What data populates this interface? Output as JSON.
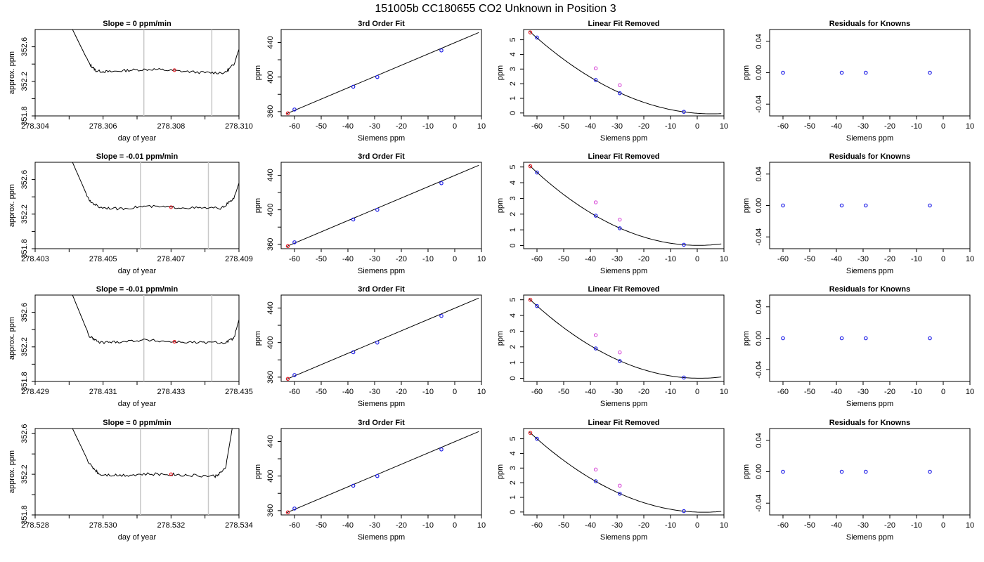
{
  "main_title": "151005b     CC180655   CO2 Unknown in Position  3",
  "chart_data": [
    {
      "type": "line",
      "title": "Slope =  0  ppm/min",
      "xlabel": "day of year",
      "ylabel": "approx. ppm",
      "xlim": [
        278.304,
        278.31
      ],
      "ylim": [
        351.8,
        352.8
      ],
      "xticks": [
        "278.304",
        "278.306",
        "278.308",
        "278.310"
      ],
      "yticks": [
        "351.8",
        "352.2",
        "352.6"
      ],
      "vlines": [
        278.3072,
        278.3092
      ],
      "x": [
        278.3051,
        278.3056,
        278.3058,
        278.3062,
        278.3068,
        278.3075,
        278.3082,
        278.309,
        278.3096,
        278.30985,
        278.3102
      ],
      "y": [
        352.8,
        352.4,
        352.32,
        352.31,
        352.33,
        352.34,
        352.32,
        352.3,
        352.3,
        352.4,
        352.8
      ],
      "marker": {
        "x": 278.3081,
        "y": 352.33
      }
    },
    {
      "type": "line",
      "title": "3rd Order Fit",
      "xlabel": "Siemens ppm",
      "ylabel": "ppm",
      "xlim": [
        -65,
        10
      ],
      "ylim": [
        355,
        455
      ],
      "xticks": [
        "-60",
        "-50",
        "-40",
        "-30",
        "-20",
        "-10",
        "0",
        "10"
      ],
      "yticks": [
        "360",
        "400",
        "440"
      ],
      "blue_points": [
        [
          -60,
          362.4
        ],
        [
          -38,
          388.8
        ],
        [
          -29,
          400
        ],
        [
          -5,
          430.8
        ]
      ],
      "red_points": [
        [
          -62.5,
          358
        ]
      ],
      "line": [
        [
          -63,
          357.5
        ],
        [
          9,
          451.5
        ]
      ]
    },
    {
      "type": "line",
      "title": "Linear Fit Removed",
      "xlabel": "Siemens ppm",
      "ylabel": "ppm",
      "xlim": [
        -65,
        10
      ],
      "ylim": [
        -0.2,
        5.7
      ],
      "xticks": [
        "-60",
        "-50",
        "-40",
        "-30",
        "-20",
        "-10",
        "0",
        "10"
      ],
      "yticks": [
        "0",
        "1",
        "2",
        "3",
        "4",
        "5"
      ],
      "blue_points": [
        [
          -60,
          5.15
        ],
        [
          -38,
          2.25
        ],
        [
          -29,
          1.35
        ],
        [
          -5,
          0.08
        ]
      ],
      "magenta_points": [
        [
          -38,
          3.05
        ],
        [
          -29,
          1.9
        ]
      ],
      "red_points": [
        [
          -62.5,
          5.5
        ]
      ]
    },
    {
      "type": "scatter",
      "title": "Residuals for Knowns",
      "xlabel": "Siemens ppm",
      "ylabel": "ppm",
      "xlim": [
        -65,
        10
      ],
      "ylim": [
        -0.055,
        0.055
      ],
      "xticks": [
        "-60",
        "-50",
        "-40",
        "-30",
        "-20",
        "-10",
        "0",
        "10"
      ],
      "yticks": [
        "-0.04",
        "0.00",
        "0.04"
      ],
      "blue_points": [
        [
          -60,
          0
        ],
        [
          -38,
          0
        ],
        [
          -29,
          0
        ],
        [
          -5,
          0
        ]
      ]
    },
    {
      "type": "line",
      "title": "Slope =  -0.01  ppm/min",
      "xlabel": "day of year",
      "ylabel": "approx. ppm",
      "xlim": [
        278.403,
        278.409
      ],
      "ylim": [
        351.8,
        352.8
      ],
      "xticks": [
        "278.403",
        "278.405",
        "278.407",
        "278.409"
      ],
      "yticks": [
        "351.8",
        "352.2",
        "352.6"
      ],
      "vlines": [
        278.4061,
        278.4081
      ],
      "x": [
        278.4041,
        278.4046,
        278.4049,
        278.4055,
        278.4062,
        278.407,
        278.4078,
        278.4085,
        278.40885,
        278.4092
      ],
      "y": [
        352.8,
        352.35,
        352.28,
        352.26,
        352.29,
        352.28,
        352.27,
        352.27,
        352.38,
        352.8
      ],
      "marker": {
        "x": 278.407,
        "y": 352.28
      }
    },
    {
      "type": "line",
      "title": "3rd Order Fit",
      "xlabel": "Siemens ppm",
      "ylabel": "ppm",
      "xlim": [
        -65,
        10
      ],
      "ylim": [
        355,
        455
      ],
      "xticks": [
        "-60",
        "-50",
        "-40",
        "-30",
        "-20",
        "-10",
        "0",
        "10"
      ],
      "yticks": [
        "360",
        "400",
        "440"
      ],
      "blue_points": [
        [
          -60,
          362.4
        ],
        [
          -38,
          388.8
        ],
        [
          -29,
          400
        ],
        [
          -5,
          430.8
        ]
      ],
      "red_points": [
        [
          -62.5,
          358
        ]
      ],
      "line": [
        [
          -63,
          357.5
        ],
        [
          9,
          451.5
        ]
      ]
    },
    {
      "type": "line",
      "title": "Linear Fit Removed",
      "xlabel": "Siemens ppm",
      "ylabel": "ppm",
      "xlim": [
        -65,
        10
      ],
      "ylim": [
        -0.2,
        5.3
      ],
      "xticks": [
        "-60",
        "-50",
        "-40",
        "-30",
        "-20",
        "-10",
        "0",
        "10"
      ],
      "yticks": [
        "0",
        "1",
        "2",
        "3",
        "4",
        "5"
      ],
      "blue_points": [
        [
          -60,
          4.65
        ],
        [
          -38,
          1.9
        ],
        [
          -29,
          1.1
        ],
        [
          -5,
          0.05
        ]
      ],
      "magenta_points": [
        [
          -38,
          2.75
        ],
        [
          -29,
          1.65
        ]
      ],
      "red_points": [
        [
          -62.5,
          5.05
        ]
      ]
    },
    {
      "type": "scatter",
      "title": "Residuals for Knowns",
      "xlabel": "Siemens ppm",
      "ylabel": "ppm",
      "xlim": [
        -65,
        10
      ],
      "ylim": [
        -0.055,
        0.055
      ],
      "xticks": [
        "-60",
        "-50",
        "-40",
        "-30",
        "-20",
        "-10",
        "0",
        "10"
      ],
      "yticks": [
        "-0.04",
        "0.00",
        "0.04"
      ],
      "blue_points": [
        [
          -60,
          0
        ],
        [
          -38,
          0
        ],
        [
          -29,
          0
        ],
        [
          -5,
          0
        ]
      ]
    },
    {
      "type": "line",
      "title": "Slope =  -0.01  ppm/min",
      "xlabel": "day of year",
      "ylabel": "approx. ppm",
      "xlim": [
        278.429,
        278.435
      ],
      "ylim": [
        351.8,
        352.8
      ],
      "xticks": [
        "278.429",
        "278.431",
        "278.433",
        "278.435"
      ],
      "yticks": [
        "351.8",
        "352.2",
        "352.6"
      ],
      "vlines": [
        278.4322,
        278.4342
      ],
      "x": [
        278.4301,
        278.4306,
        278.4309,
        278.4315,
        278.4322,
        278.433,
        278.4338,
        278.4346,
        278.43485,
        278.4352
      ],
      "y": [
        352.8,
        352.32,
        352.25,
        352.26,
        352.28,
        352.26,
        352.25,
        352.25,
        352.3,
        352.8
      ],
      "marker": {
        "x": 278.4331,
        "y": 352.26
      }
    },
    {
      "type": "line",
      "title": "3rd Order Fit",
      "xlabel": "Siemens ppm",
      "ylabel": "ppm",
      "xlim": [
        -65,
        10
      ],
      "ylim": [
        355,
        455
      ],
      "xticks": [
        "-60",
        "-50",
        "-40",
        "-30",
        "-20",
        "-10",
        "0",
        "10"
      ],
      "yticks": [
        "360",
        "400",
        "440"
      ],
      "blue_points": [
        [
          -60,
          362.4
        ],
        [
          -38,
          388.8
        ],
        [
          -29,
          400
        ],
        [
          -5,
          430.8
        ]
      ],
      "red_points": [
        [
          -62.5,
          358
        ]
      ],
      "line": [
        [
          -63,
          357.5
        ],
        [
          9,
          451.5
        ]
      ]
    },
    {
      "type": "line",
      "title": "Linear Fit Removed",
      "xlabel": "Siemens ppm",
      "ylabel": "ppm",
      "xlim": [
        -65,
        10
      ],
      "ylim": [
        -0.2,
        5.3
      ],
      "xticks": [
        "-60",
        "-50",
        "-40",
        "-30",
        "-20",
        "-10",
        "0",
        "10"
      ],
      "yticks": [
        "0",
        "1",
        "2",
        "3",
        "4",
        "5"
      ],
      "blue_points": [
        [
          -60,
          4.6
        ],
        [
          -38,
          1.9
        ],
        [
          -29,
          1.1
        ],
        [
          -5,
          0.05
        ]
      ],
      "magenta_points": [
        [
          -38,
          2.75
        ],
        [
          -29,
          1.65
        ]
      ],
      "red_points": [
        [
          -62.5,
          5.0
        ]
      ]
    },
    {
      "type": "scatter",
      "title": "Residuals for Knowns",
      "xlabel": "Siemens ppm",
      "ylabel": "ppm",
      "xlim": [
        -65,
        10
      ],
      "ylim": [
        -0.055,
        0.055
      ],
      "xticks": [
        "-60",
        "-50",
        "-40",
        "-30",
        "-20",
        "-10",
        "0",
        "10"
      ],
      "yticks": [
        "-0.04",
        "0.00",
        "0.04"
      ],
      "blue_points": [
        [
          -60,
          0
        ],
        [
          -38,
          0
        ],
        [
          -29,
          0
        ],
        [
          -5,
          0
        ]
      ]
    },
    {
      "type": "line",
      "title": "Slope =  0  ppm/min",
      "xlabel": "day of year",
      "ylabel": "approx. ppm",
      "xlim": [
        278.528,
        278.534
      ],
      "ylim": [
        351.8,
        352.65
      ],
      "xticks": [
        "278.528",
        "278.530",
        "278.532",
        "278.534"
      ],
      "yticks": [
        "351.8",
        "352.2",
        "352.6"
      ],
      "vlines": [
        278.5311,
        278.5331
      ],
      "x": [
        278.5291,
        278.5296,
        278.5299,
        278.5305,
        278.5312,
        278.532,
        278.5325,
        278.5333,
        278.5336,
        278.5338
      ],
      "y": [
        352.65,
        352.3,
        352.2,
        352.19,
        352.2,
        352.2,
        352.19,
        352.18,
        352.25,
        352.65
      ],
      "marker": {
        "x": 278.532,
        "y": 352.2
      }
    },
    {
      "type": "line",
      "title": "3rd Order Fit",
      "xlabel": "Siemens ppm",
      "ylabel": "ppm",
      "xlim": [
        -65,
        10
      ],
      "ylim": [
        355,
        455
      ],
      "xticks": [
        "-60",
        "-50",
        "-40",
        "-30",
        "-20",
        "-10",
        "0",
        "10"
      ],
      "yticks": [
        "360",
        "400",
        "440"
      ],
      "blue_points": [
        [
          -60,
          362.4
        ],
        [
          -38,
          388.8
        ],
        [
          -29,
          400
        ],
        [
          -5,
          430.8
        ]
      ],
      "red_points": [
        [
          -62.5,
          358
        ]
      ],
      "line": [
        [
          -63,
          357.5
        ],
        [
          9,
          451.5
        ]
      ]
    },
    {
      "type": "line",
      "title": "Linear Fit Removed",
      "xlabel": "Siemens ppm",
      "ylabel": "ppm",
      "xlim": [
        -65,
        10
      ],
      "ylim": [
        -0.2,
        5.7
      ],
      "xticks": [
        "-60",
        "-50",
        "-40",
        "-30",
        "-20",
        "-10",
        "0",
        "10"
      ],
      "yticks": [
        "0",
        "1",
        "2",
        "3",
        "4",
        "5"
      ],
      "blue_points": [
        [
          -60,
          5.0
        ],
        [
          -38,
          2.1
        ],
        [
          -29,
          1.25
        ],
        [
          -5,
          0.06
        ]
      ],
      "magenta_points": [
        [
          -38,
          2.9
        ],
        [
          -29,
          1.8
        ]
      ],
      "red_points": [
        [
          -62.5,
          5.4
        ]
      ]
    },
    {
      "type": "scatter",
      "title": "Residuals for Knowns",
      "xlabel": "Siemens ppm",
      "ylabel": "ppm",
      "xlim": [
        -65,
        10
      ],
      "ylim": [
        -0.055,
        0.055
      ],
      "xticks": [
        "-60",
        "-50",
        "-40",
        "-30",
        "-20",
        "-10",
        "0",
        "10"
      ],
      "yticks": [
        "-0.04",
        "0.00",
        "0.04"
      ],
      "blue_points": [
        [
          -60,
          0
        ],
        [
          -38,
          0
        ],
        [
          -29,
          0
        ],
        [
          -5,
          0
        ]
      ]
    }
  ]
}
